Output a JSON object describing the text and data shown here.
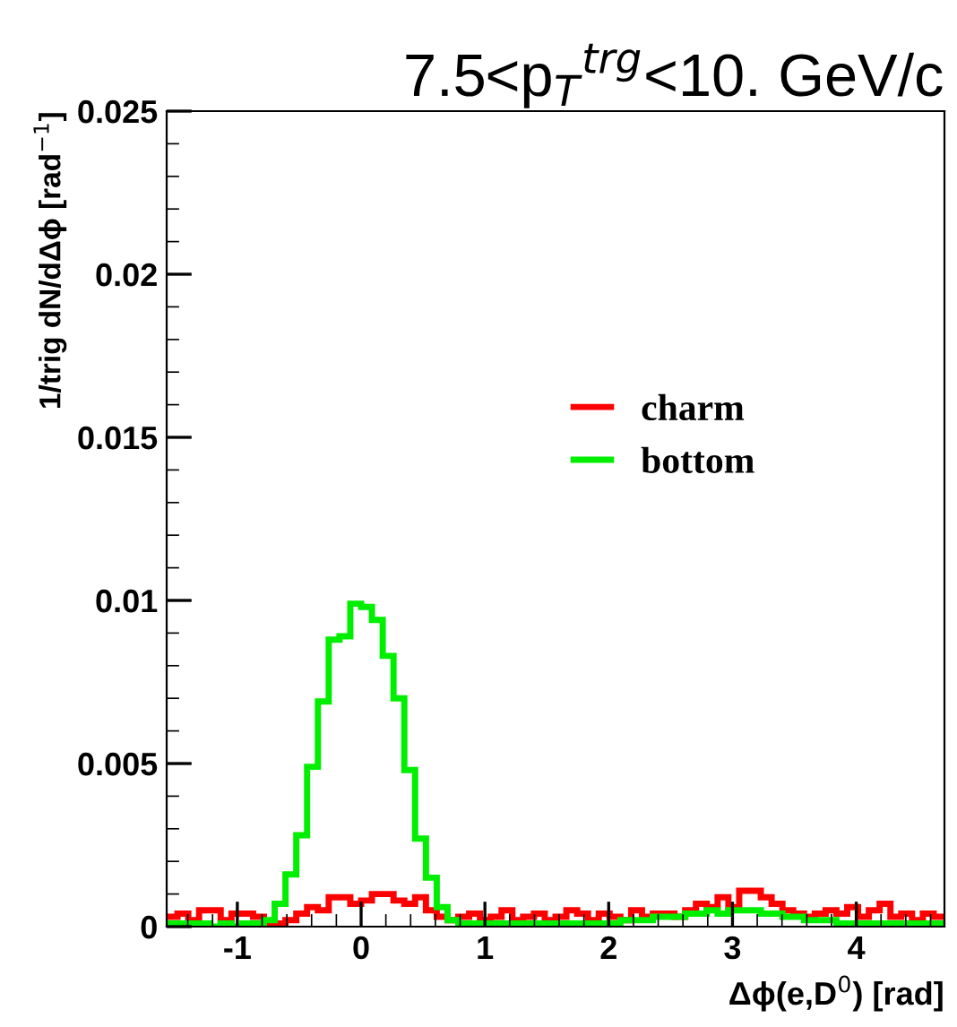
{
  "chart_data": {
    "type": "histogram",
    "title": "7.5<p$_{T}$$^{trg}$<10. GeV/c",
    "xlabel": "Δϕ(e,D$^{0}$) [rad]",
    "ylabel": "1/trig dN/dΔϕ [rad$^{−1}$]",
    "bins": [
      -1.5708,
      -1.4835,
      -1.3963,
      -1.309,
      -1.2217,
      -1.1345,
      -1.0472,
      -0.9599,
      -0.8727,
      -0.7854,
      -0.6981,
      -0.6109,
      -0.5236,
      -0.4363,
      -0.3491,
      -0.2618,
      -0.1745,
      -0.0873,
      0.0,
      0.0873,
      0.1745,
      0.2618,
      0.3491,
      0.4363,
      0.5236,
      0.6109,
      0.6981,
      0.7854,
      0.8727,
      0.9599,
      1.0472,
      1.1345,
      1.2217,
      1.309,
      1.3963,
      1.4835,
      1.5708,
      1.6581,
      1.7453,
      1.8326,
      1.9199,
      2.0071,
      2.0944,
      2.1817,
      2.2689,
      2.3562,
      2.4435,
      2.5307,
      2.618,
      2.7053,
      2.7925,
      2.8798,
      2.967,
      3.0543,
      3.1416,
      3.2289,
      3.3161,
      3.4034,
      3.4907,
      3.5779,
      3.6652,
      3.7525,
      3.8397,
      3.927,
      4.0143,
      4.1015,
      4.1888,
      4.2761,
      4.3633,
      4.4506,
      4.5379,
      4.6251,
      4.7124
    ],
    "series": [
      {
        "name": "charm",
        "color": "#ff0000",
        "values": [
          0.0003,
          0.0004,
          0.0002,
          0.0005,
          0.0005,
          0.0002,
          0.0004,
          0.0004,
          0.0003,
          0.0001,
          0.0001,
          0.0002,
          0.0004,
          0.0006,
          0.0005,
          0.0009,
          0.0009,
          0.0007,
          0.0008,
          0.001,
          0.001,
          0.0008,
          0.0007,
          0.0009,
          0.0005,
          0.0003,
          0.0002,
          0.0003,
          0.0004,
          0.0002,
          0.0003,
          0.0005,
          0.0002,
          0.0003,
          0.0004,
          0.0002,
          0.0003,
          0.0005,
          0.0004,
          0.0002,
          0.0004,
          0.0003,
          0.0002,
          0.0005,
          0.0003,
          0.0004,
          0.0004,
          0.0003,
          0.0005,
          0.0007,
          0.0006,
          0.0009,
          0.0006,
          0.0011,
          0.0011,
          0.0009,
          0.0007,
          0.0005,
          0.0004,
          0.0003,
          0.0004,
          0.0005,
          0.0004,
          0.0006,
          0.0003,
          0.0005,
          0.0007,
          0.0003,
          0.0004,
          0.0002,
          0.0004,
          0.0003
        ]
      },
      {
        "name": "bottom",
        "color": "#00ee00",
        "values": [
          0.0001,
          0.0001,
          0.0001,
          0.0001,
          0.0,
          0.0001,
          0.0,
          0.0001,
          0.0001,
          0.0002,
          0.0007,
          0.0016,
          0.0028,
          0.0049,
          0.0069,
          0.0088,
          0.0089,
          0.0099,
          0.0098,
          0.0094,
          0.0083,
          0.007,
          0.0048,
          0.0027,
          0.0015,
          0.0006,
          0.0002,
          0.0001,
          0.0001,
          0.0001,
          0.0001,
          0.0001,
          0.0001,
          0.0001,
          0.0001,
          0.0001,
          0.0001,
          0.0001,
          0.0001,
          0.0001,
          0.0001,
          0.0001,
          0.0002,
          0.0002,
          0.0002,
          0.0003,
          0.0003,
          0.0003,
          0.0004,
          0.0004,
          0.0005,
          0.0004,
          0.0005,
          0.0005,
          0.0005,
          0.0004,
          0.0004,
          0.0003,
          0.0003,
          0.0002,
          0.0002,
          0.0002,
          0.0001,
          0.0001,
          0.0001,
          0.0001,
          0.0001,
          0.0001,
          0.0001,
          0.0001,
          0.0001,
          0.0001
        ]
      }
    ],
    "xlim": [
      -1.5708,
      4.7124
    ],
    "ylim": [
      0,
      0.025
    ],
    "xticks": [
      -1,
      0,
      1,
      2,
      3,
      4
    ],
    "yticks": [
      0,
      0.005,
      0.01,
      0.015,
      0.02,
      0.025
    ],
    "legend": "right"
  }
}
